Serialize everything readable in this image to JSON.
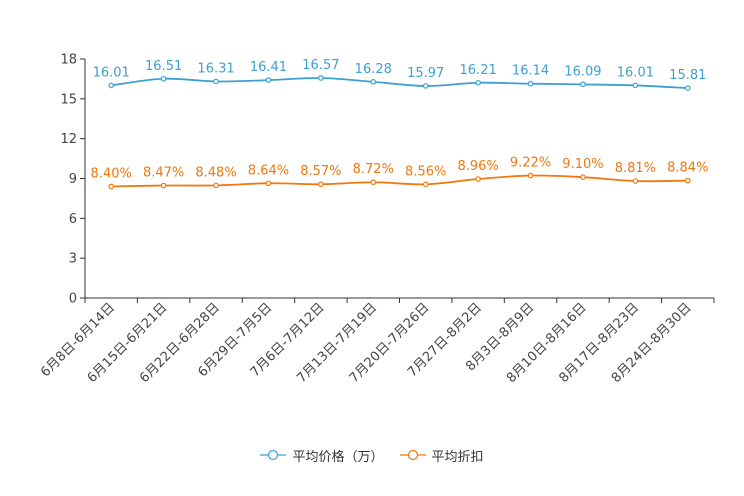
{
  "chart_data": {
    "type": "line",
    "title": "",
    "xlabel": "",
    "ylabel": "",
    "ylim": [
      0,
      18
    ],
    "yticks": [
      0,
      3,
      6,
      9,
      12,
      15,
      18
    ],
    "grid": false,
    "legend_position": "bottom-center",
    "categories": [
      "6月8日-6月14日",
      "6月15日-6月21日",
      "6月22日-6月28日",
      "6月29日-7月5日",
      "7月6日-7月12日",
      "7月13日-7月19日",
      "7月20日-7月26日",
      "7月27日-8月2日",
      "8月3日-8月9日",
      "8月10日-8月16日",
      "8月17日-8月23日",
      "8月24日-8月30日"
    ],
    "series": [
      {
        "name": "平均价格（万）",
        "color": "#3ca0d5",
        "values": [
          16.01,
          16.51,
          16.31,
          16.41,
          16.57,
          16.28,
          15.97,
          16.21,
          16.14,
          16.09,
          16.01,
          15.81
        ],
        "labels": [
          "16.01",
          "16.51",
          "16.31",
          "16.41",
          "16.57",
          "16.28",
          "15.97",
          "16.21",
          "16.14",
          "16.09",
          "16.01",
          "15.81"
        ]
      },
      {
        "name": "平均折扣",
        "color": "#f0780f",
        "values": [
          8.4,
          8.47,
          8.48,
          8.64,
          8.57,
          8.72,
          8.56,
          8.96,
          9.22,
          9.1,
          8.81,
          8.84
        ],
        "labels": [
          "8.40%",
          "8.47%",
          "8.48%",
          "8.64%",
          "8.57%",
          "8.72%",
          "8.56%",
          "8.96%",
          "9.22%",
          "9.10%",
          "8.81%",
          "8.84%"
        ]
      }
    ]
  }
}
